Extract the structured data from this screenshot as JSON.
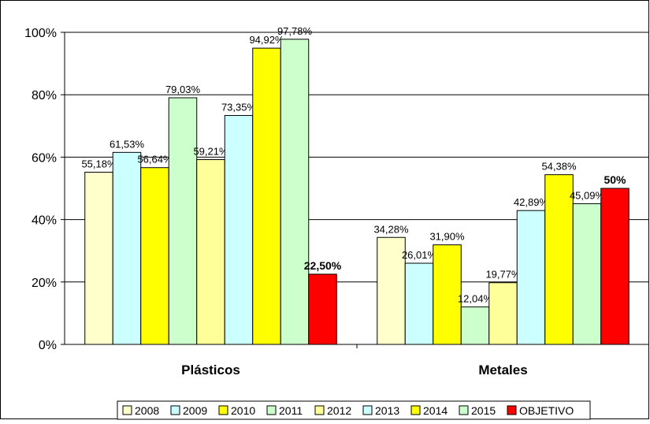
{
  "chart_data": {
    "type": "bar",
    "categories": [
      "Plásticos",
      "Metales"
    ],
    "ylim": [
      0,
      100
    ],
    "y_ticks": [
      0,
      20,
      40,
      60,
      80,
      100
    ],
    "y_tick_labels": [
      "0%",
      "20%",
      "40%",
      "60%",
      "80%",
      "100%"
    ],
    "grid": true,
    "legend_position": "bottom",
    "series": [
      {
        "name": "2008",
        "color": "#FFFFCC",
        "values": [
          55.18,
          34.28
        ],
        "labels": [
          "55,18%",
          "34,28%"
        ]
      },
      {
        "name": "2009",
        "color": "#CCFFFF",
        "values": [
          61.53,
          26.01
        ],
        "labels": [
          "61,53%",
          "26,01%"
        ]
      },
      {
        "name": "2010",
        "color": "#FFFF00",
        "values": [
          56.64,
          31.9
        ],
        "labels": [
          "56,64%",
          "31,90%"
        ]
      },
      {
        "name": "2011",
        "color": "#CCFFCC",
        "values": [
          79.03,
          12.04
        ],
        "labels": [
          "79,03%",
          "12,04%"
        ]
      },
      {
        "name": "2012",
        "color": "#FFFF99",
        "values": [
          59.21,
          19.77
        ],
        "labels": [
          "59,21%",
          "19,77%"
        ]
      },
      {
        "name": "2013",
        "color": "#CCFFFF",
        "values": [
          73.35,
          42.89
        ],
        "labels": [
          "73,35%",
          "42,89%"
        ]
      },
      {
        "name": "2014",
        "color": "#FFFF00",
        "values": [
          94.92,
          54.38
        ],
        "labels": [
          "94,92%",
          "54,38%"
        ]
      },
      {
        "name": "2015",
        "color": "#CCFFCC",
        "values": [
          97.78,
          45.09
        ],
        "labels": [
          "97,78%",
          "45,09%"
        ]
      },
      {
        "name": "OBJETIVO",
        "color": "#FF0000",
        "values": [
          22.5,
          50
        ],
        "labels": [
          "22,50%",
          "50%"
        ],
        "bold_labels": true
      }
    ]
  }
}
